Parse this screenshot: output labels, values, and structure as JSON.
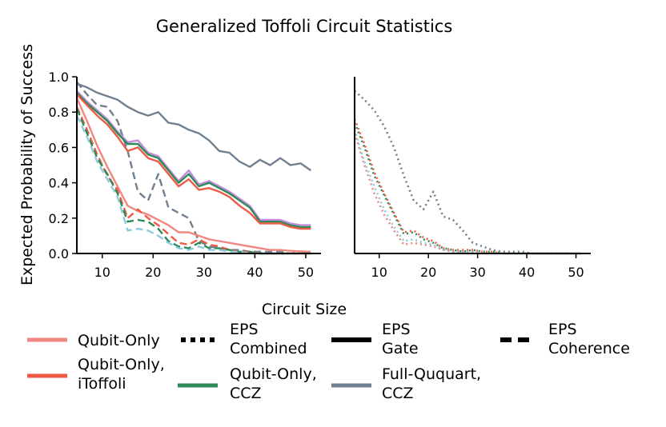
{
  "title": "Generalized Toffoli Circuit Statistics",
  "colors": {
    "qubit_only": "#f08781",
    "qubit_only_itoffoli": "#ef5a45",
    "qubit_only_ccz": "#2e8b57",
    "full_ququart_ccz": "#708090",
    "purple_overlay": "#c58be0",
    "blue_overlay": "#8ecbe0"
  },
  "legend": [
    {
      "label": "Qubit-Only",
      "kind": "color",
      "color_key": "qubit_only"
    },
    {
      "label": "EPS Combined",
      "kind": "style",
      "dash": "dotted"
    },
    {
      "label": "EPS Gate",
      "kind": "style",
      "dash": "solid"
    },
    {
      "label": "EPS Coherence",
      "kind": "style",
      "dash": "dashed"
    },
    {
      "label": "Qubit-Only, iToffoli",
      "kind": "color",
      "color_key": "qubit_only_itoffoli"
    },
    {
      "label": "Qubit-Only, CCZ",
      "kind": "color",
      "color_key": "qubit_only_ccz"
    },
    {
      "label": "Full-Ququart, CCZ",
      "kind": "color",
      "color_key": "full_ququart_ccz"
    }
  ],
  "chart_data": [
    {
      "type": "line",
      "panel": "left",
      "title": "",
      "xlabel": "Circuit Size",
      "ylabel": "Expected Probability of Success",
      "xlim": [
        5,
        53
      ],
      "ylim": [
        0,
        1
      ],
      "xticks": [
        10,
        20,
        30,
        40,
        50
      ],
      "yticks": [
        0.0,
        0.2,
        0.4,
        0.6,
        0.8,
        1.0
      ],
      "ytick_labels": [
        "0.0",
        "0.2",
        "0.4",
        "0.6",
        "0.8",
        "1.0"
      ],
      "series": [
        {
          "name": "Full-Ququart, CCZ (EPS Gate)",
          "color_key": "full_ququart_ccz",
          "dash": "solid",
          "x": [
            5,
            7,
            9,
            11,
            13,
            15,
            17,
            19,
            21,
            23,
            25,
            27,
            29,
            31,
            33,
            35,
            37,
            39,
            41,
            43,
            45,
            47,
            49,
            51
          ],
          "y": [
            0.96,
            0.94,
            0.91,
            0.89,
            0.87,
            0.83,
            0.8,
            0.78,
            0.8,
            0.74,
            0.73,
            0.7,
            0.68,
            0.64,
            0.58,
            0.57,
            0.52,
            0.49,
            0.53,
            0.5,
            0.54,
            0.5,
            0.51,
            0.47
          ]
        },
        {
          "name": "Full-Ququart, CCZ (EPS Coherence)",
          "color_key": "full_ququart_ccz",
          "dash": "dashed",
          "x": [
            5,
            7,
            9,
            11,
            13,
            15,
            17,
            19,
            21,
            23,
            25,
            27,
            29,
            31,
            33,
            35,
            37,
            39,
            41,
            43,
            45,
            47,
            49,
            51
          ],
          "y": [
            0.97,
            0.9,
            0.84,
            0.83,
            0.75,
            0.58,
            0.35,
            0.3,
            0.45,
            0.26,
            0.23,
            0.2,
            0.07,
            0.04,
            0.03,
            0.02,
            0.02,
            0.01,
            0.01,
            0.01,
            0.01,
            0.0,
            0.01,
            0.0
          ]
        },
        {
          "name": "Qubit-Only, iToffoli (EPS Gate) overlay",
          "color_key": "purple_overlay",
          "dash": "solid",
          "x": [
            5,
            7,
            9,
            11,
            13,
            15,
            17,
            19,
            21,
            23,
            25,
            27,
            29,
            31,
            33,
            35,
            37,
            39,
            41,
            43,
            45,
            47,
            49,
            51
          ],
          "y": [
            0.92,
            0.86,
            0.81,
            0.76,
            0.69,
            0.63,
            0.64,
            0.57,
            0.55,
            0.48,
            0.41,
            0.47,
            0.39,
            0.41,
            0.38,
            0.35,
            0.31,
            0.27,
            0.19,
            0.19,
            0.19,
            0.17,
            0.16,
            0.16
          ]
        },
        {
          "name": "Qubit-Only, CCZ (EPS Gate)",
          "color_key": "qubit_only_ccz",
          "dash": "solid",
          "x": [
            5,
            7,
            9,
            11,
            13,
            15,
            17,
            19,
            21,
            23,
            25,
            27,
            29,
            31,
            33,
            35,
            37,
            39,
            41,
            43,
            45,
            47,
            49,
            51
          ],
          "y": [
            0.91,
            0.85,
            0.8,
            0.75,
            0.68,
            0.62,
            0.62,
            0.56,
            0.54,
            0.47,
            0.4,
            0.45,
            0.38,
            0.4,
            0.37,
            0.34,
            0.3,
            0.26,
            0.18,
            0.18,
            0.18,
            0.16,
            0.15,
            0.15
          ]
        },
        {
          "name": "Qubit-Only, iToffoli (EPS Gate)",
          "color_key": "qubit_only_itoffoli",
          "dash": "solid",
          "x": [
            5,
            7,
            9,
            11,
            13,
            15,
            17,
            19,
            21,
            23,
            25,
            27,
            29,
            31,
            33,
            35,
            37,
            39,
            41,
            43,
            45,
            47,
            49,
            51
          ],
          "y": [
            0.9,
            0.84,
            0.78,
            0.73,
            0.66,
            0.58,
            0.6,
            0.54,
            0.52,
            0.45,
            0.38,
            0.42,
            0.36,
            0.37,
            0.35,
            0.32,
            0.27,
            0.23,
            0.17,
            0.17,
            0.17,
            0.15,
            0.14,
            0.14
          ]
        },
        {
          "name": "Qubit-Only (EPS Gate)",
          "color_key": "qubit_only",
          "dash": "solid",
          "x": [
            5,
            7,
            9,
            11,
            13,
            15,
            17,
            19,
            21,
            23,
            25,
            27,
            29,
            31,
            33,
            35,
            37,
            39,
            41,
            43,
            45,
            47,
            49,
            51
          ],
          "y": [
            0.88,
            0.75,
            0.61,
            0.49,
            0.38,
            0.27,
            0.24,
            0.22,
            0.19,
            0.16,
            0.12,
            0.12,
            0.1,
            0.08,
            0.07,
            0.06,
            0.05,
            0.04,
            0.03,
            0.02,
            0.02,
            0.015,
            0.012,
            0.01
          ]
        },
        {
          "name": "Qubit-Only, iToffoli (EPS Coherence)",
          "color_key": "qubit_only_itoffoli",
          "dash": "dashed",
          "x": [
            5,
            7,
            9,
            11,
            13,
            15,
            17,
            19,
            21,
            23,
            25,
            27,
            29,
            31,
            33,
            35,
            37,
            39,
            41,
            43,
            45,
            47,
            49,
            51
          ],
          "y": [
            0.83,
            0.7,
            0.56,
            0.44,
            0.36,
            0.2,
            0.25,
            0.2,
            0.16,
            0.11,
            0.06,
            0.05,
            0.08,
            0.05,
            0.04,
            0.02,
            0.01,
            0.01,
            0.0,
            0.0,
            0.0,
            0.0,
            0.0,
            0.0
          ]
        },
        {
          "name": "Qubit-Only, CCZ (EPS Coherence)",
          "color_key": "qubit_only_ccz",
          "dash": "dashed",
          "x": [
            5,
            7,
            9,
            11,
            13,
            15,
            17,
            19,
            21,
            23,
            25,
            27,
            29,
            31,
            33,
            35,
            37,
            39,
            41,
            43,
            45,
            47,
            49,
            51
          ],
          "y": [
            0.82,
            0.68,
            0.54,
            0.45,
            0.34,
            0.18,
            0.19,
            0.18,
            0.14,
            0.07,
            0.04,
            0.03,
            0.06,
            0.03,
            0.03,
            0.02,
            0.01,
            0.01,
            0.0,
            0.0,
            0.0,
            0.0,
            0.0,
            0.0
          ]
        },
        {
          "name": "Qubit-Only (EPS Coherence) overlay",
          "color_key": "blue_overlay",
          "dash": "dashed",
          "x": [
            5,
            7,
            9,
            11,
            13,
            15,
            17,
            19,
            21,
            23,
            25,
            27,
            29,
            31,
            33,
            35,
            37,
            39,
            41,
            43,
            45,
            47,
            49,
            51
          ],
          "y": [
            0.78,
            0.66,
            0.52,
            0.42,
            0.32,
            0.13,
            0.14,
            0.13,
            0.1,
            0.06,
            0.03,
            0.02,
            0.04,
            0.02,
            0.02,
            0.01,
            0.01,
            0.0,
            0.0,
            0.0,
            0.0,
            0.0,
            0.0,
            0.0
          ]
        }
      ]
    },
    {
      "type": "line",
      "panel": "right",
      "title": "",
      "xlabel": "",
      "ylabel": "",
      "xlim": [
        5,
        53
      ],
      "ylim": [
        0,
        1
      ],
      "xticks": [
        10,
        20,
        30,
        40,
        50
      ],
      "yticks": [],
      "series": [
        {
          "name": "Full-Ququart, CCZ (EPS Combined)",
          "color_key": "full_ququart_ccz",
          "dash": "dotted",
          "x": [
            5,
            7,
            9,
            11,
            13,
            15,
            17,
            19,
            21,
            23,
            25,
            27,
            29,
            31,
            33,
            35,
            37,
            39,
            41,
            43,
            45,
            47,
            49,
            51
          ],
          "y": [
            0.92,
            0.87,
            0.81,
            0.72,
            0.6,
            0.44,
            0.3,
            0.25,
            0.35,
            0.21,
            0.19,
            0.13,
            0.06,
            0.04,
            0.02,
            0.01,
            0.01,
            0.01,
            0.0,
            0.0,
            0.0,
            0.0,
            0.0,
            0.0
          ]
        },
        {
          "name": "Qubit-Only, iToffoli (EPS Combined)",
          "color_key": "qubit_only_itoffoli",
          "dash": "dotted",
          "x": [
            5,
            7,
            9,
            11,
            13,
            15,
            17,
            19,
            21,
            23,
            25,
            27,
            29,
            31,
            33,
            35,
            37,
            39,
            41,
            43,
            45,
            47,
            49,
            51
          ],
          "y": [
            0.76,
            0.62,
            0.46,
            0.34,
            0.23,
            0.12,
            0.13,
            0.09,
            0.07,
            0.03,
            0.02,
            0.02,
            0.02,
            0.01,
            0.01,
            0.0,
            0.0,
            0.0,
            0.0,
            0.0,
            0.0,
            0.0,
            0.0,
            0.0
          ]
        },
        {
          "name": "Qubit-Only, CCZ (EPS Combined)",
          "color_key": "qubit_only_ccz",
          "dash": "dotted",
          "x": [
            5,
            7,
            9,
            11,
            13,
            15,
            17,
            19,
            21,
            23,
            25,
            27,
            29,
            31,
            33,
            35,
            37,
            39,
            41,
            43,
            45,
            47,
            49,
            51
          ],
          "y": [
            0.74,
            0.6,
            0.44,
            0.33,
            0.22,
            0.11,
            0.12,
            0.08,
            0.06,
            0.03,
            0.02,
            0.01,
            0.02,
            0.01,
            0.01,
            0.0,
            0.0,
            0.0,
            0.0,
            0.0,
            0.0,
            0.0,
            0.0,
            0.0
          ]
        },
        {
          "name": "Qubit-Only (EPS Combined)",
          "color_key": "qubit_only",
          "dash": "dotted",
          "x": [
            5,
            7,
            9,
            11,
            13,
            15,
            17,
            19,
            21,
            23,
            25,
            27,
            29,
            31,
            33,
            35,
            37,
            39,
            41,
            43,
            45,
            47,
            49,
            51
          ],
          "y": [
            0.68,
            0.5,
            0.34,
            0.22,
            0.13,
            0.05,
            0.06,
            0.05,
            0.04,
            0.02,
            0.01,
            0.01,
            0.01,
            0.0,
            0.0,
            0.0,
            0.0,
            0.0,
            0.0,
            0.0,
            0.0,
            0.0,
            0.0,
            0.0
          ]
        },
        {
          "name": "Qubit-Only (EPS Combined) overlay",
          "color_key": "blue_overlay",
          "dash": "dotted",
          "x": [
            5,
            7,
            9,
            11,
            13,
            15,
            17,
            19,
            21,
            23,
            25,
            27,
            29,
            31,
            33,
            35,
            37,
            39,
            41,
            43,
            45,
            47,
            49,
            51
          ],
          "y": [
            0.7,
            0.52,
            0.38,
            0.25,
            0.15,
            0.07,
            0.08,
            0.06,
            0.05,
            0.02,
            0.01,
            0.01,
            0.01,
            0.0,
            0.0,
            0.0,
            0.0,
            0.0,
            0.0,
            0.0,
            0.0,
            0.0,
            0.0,
            0.0
          ]
        }
      ]
    }
  ]
}
